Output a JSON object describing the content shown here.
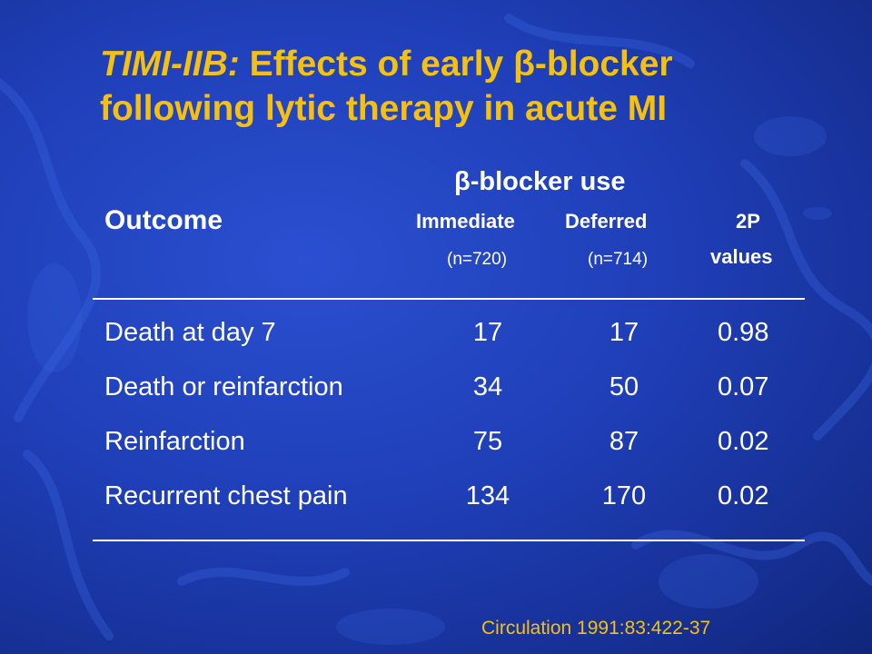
{
  "slide": {
    "title_prefix": "TIMI-IIB:",
    "title_rest": " Effects of early β-blocker",
    "title_line2": "following lytic therapy in acute MI"
  },
  "table": {
    "group_header": "β-blocker use",
    "outcome_header": "Outcome",
    "columns": [
      {
        "label": "Immediate",
        "n": "(n=720)"
      },
      {
        "label": "Deferred",
        "n": "(n=714)"
      },
      {
        "label": "2P",
        "n": "values"
      }
    ],
    "rows": [
      {
        "outcome": "Death at day 7",
        "immediate": "17",
        "deferred": "17",
        "p": "0.98"
      },
      {
        "outcome": "Death or reinfarction",
        "immediate": "34",
        "deferred": "50",
        "p": "0.07"
      },
      {
        "outcome": "Reinfarction",
        "immediate": "75",
        "deferred": "87",
        "p": "0.02"
      },
      {
        "outcome": "Recurrent chest pain",
        "immediate": "134",
        "deferred": "170",
        "p": "0.02"
      }
    ]
  },
  "source": "Circulation 1991:83:422-37",
  "colors": {
    "background": "#1f3fb8",
    "title": "#f4c012",
    "text": "#ffffff"
  }
}
